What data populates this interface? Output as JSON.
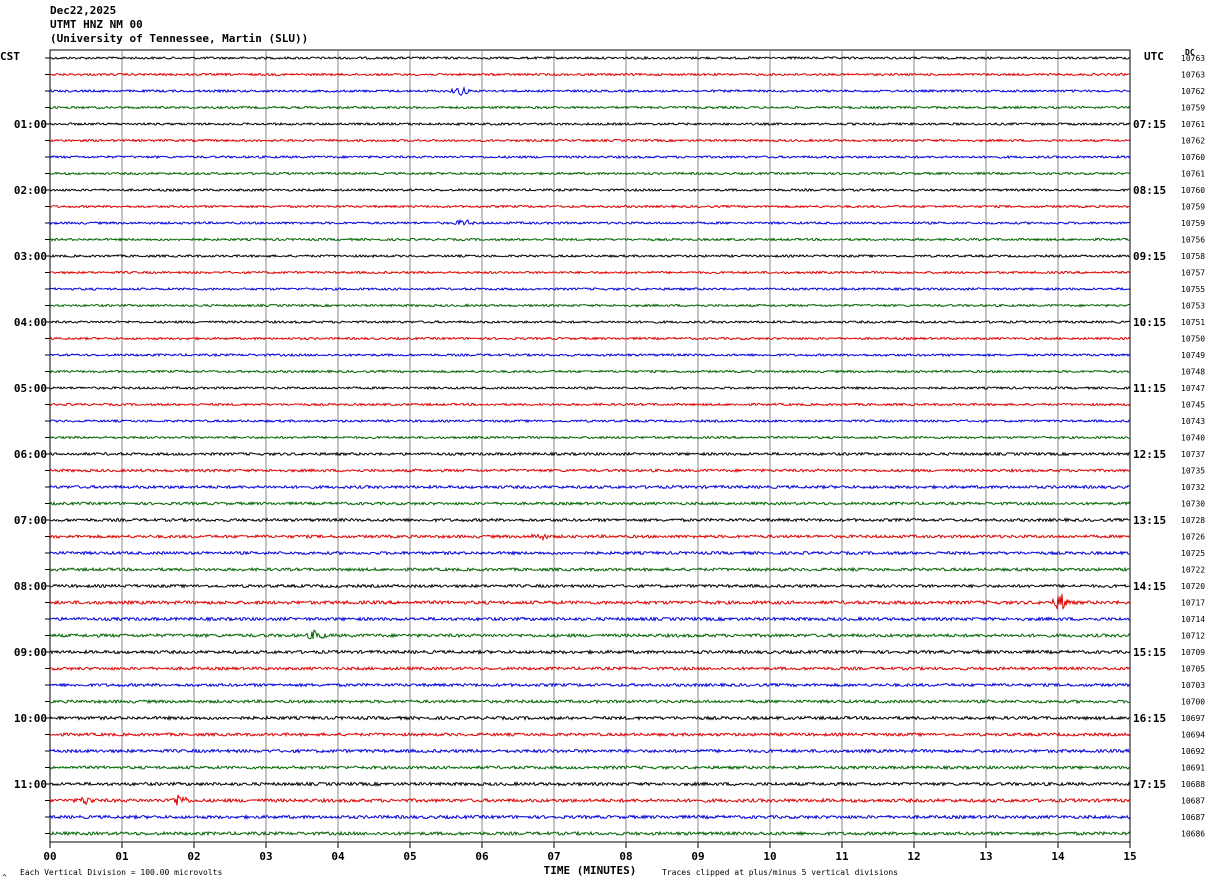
{
  "header": {
    "date": "Dec22,2025",
    "station": "UTMT HNZ NM 00",
    "organization": "(University of Tennessee, Martin (SLU))"
  },
  "left_timezone": "CST",
  "right_timezone": "UTC",
  "dc_header": "DC",
  "footer": {
    "scale_note": "Each Vertical Division =  100.00 microvolts",
    "clip_note": "Traces clipped at plus/minus 5 vertical divisions",
    "corner_mark": "^"
  },
  "colors": {
    "trace_cycle": [
      "#000000",
      "#dd0000",
      "#0000dd",
      "#006400"
    ],
    "grid": "#888888"
  },
  "chart_data": {
    "type": "line",
    "xlabel": "TIME (MINUTES)",
    "xlim": [
      0,
      15
    ],
    "x_ticks": [
      "00",
      "01",
      "02",
      "03",
      "04",
      "05",
      "06",
      "07",
      "08",
      "09",
      "10",
      "11",
      "12",
      "13",
      "14",
      "15"
    ],
    "left_hour_labels": [
      "01:00",
      "02:00",
      "03:00",
      "04:00",
      "05:00",
      "06:00",
      "07:00",
      "08:00",
      "09:00",
      "10:00",
      "11:00"
    ],
    "right_hour_labels": [
      "07:15",
      "08:15",
      "09:15",
      "10:15",
      "11:15",
      "12:15",
      "13:15",
      "14:15",
      "15:15",
      "16:15",
      "17:15"
    ],
    "dc_offsets": [
      "10763",
      "10763",
      "10762",
      "10759",
      "10761",
      "10762",
      "10760",
      "10761",
      "10760",
      "10759",
      "10759",
      "10756",
      "10758",
      "10757",
      "10755",
      "10753",
      "10751",
      "10750",
      "10749",
      "10748",
      "10747",
      "10745",
      "10743",
      "10740",
      "10737",
      "10735",
      "10732",
      "10730",
      "10728",
      "10726",
      "10725",
      "10722",
      "10720",
      "10717",
      "10714",
      "10712",
      "10709",
      "10705",
      "10703",
      "10700",
      "10697",
      "10694",
      "10692",
      "10691",
      "10688",
      "10687",
      "10687",
      "10686"
    ],
    "trace_amplitude": [
      1,
      1,
      1,
      1,
      1,
      1,
      1,
      1,
      1,
      1,
      1,
      1,
      1,
      1,
      1,
      1,
      1,
      1,
      1,
      1,
      1,
      1,
      1,
      1,
      1.2,
      1.2,
      1.3,
      1.2,
      1.3,
      1.3,
      1.3,
      1.3,
      1.3,
      1.5,
      1.4,
      1.4,
      1.4,
      1.3,
      1.3,
      1.3,
      1.4,
      1.3,
      1.4,
      1.3,
      1.4,
      1.5,
      1.4,
      1.4
    ],
    "events": [
      {
        "trace": 2,
        "minute": 5.7,
        "amplitude": 4
      },
      {
        "trace": 10,
        "minute": 5.75,
        "amplitude": 3
      },
      {
        "trace": 29,
        "minute": 6.8,
        "amplitude": 2.5
      },
      {
        "trace": 33,
        "minute": 14.05,
        "amplitude": 8
      },
      {
        "trace": 35,
        "minute": 3.7,
        "amplitude": 5
      },
      {
        "trace": 45,
        "minute": 1.8,
        "amplitude": 6
      },
      {
        "trace": 45,
        "minute": 0.5,
        "amplitude": 3
      }
    ]
  }
}
